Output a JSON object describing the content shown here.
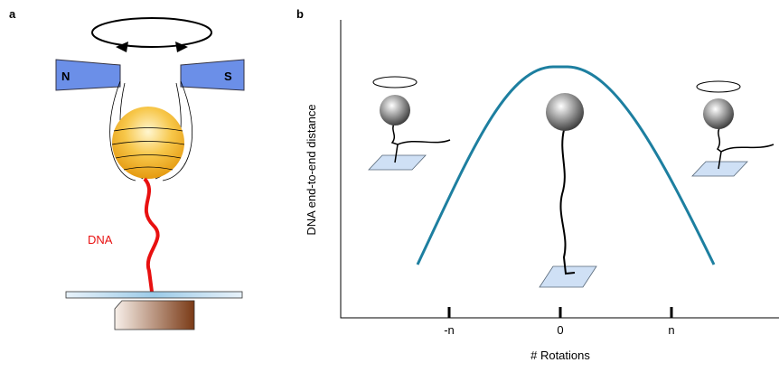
{
  "panels": {
    "a": {
      "label": "a",
      "magnet_north": "N",
      "magnet_south": "S",
      "dna_label": "DNA"
    },
    "b": {
      "label": "b",
      "y_axis_label": "DNA end-to-end distance",
      "x_axis_label": "# Rotations",
      "x_tick_labels": [
        "-n",
        "0",
        "n"
      ]
    }
  }
}
